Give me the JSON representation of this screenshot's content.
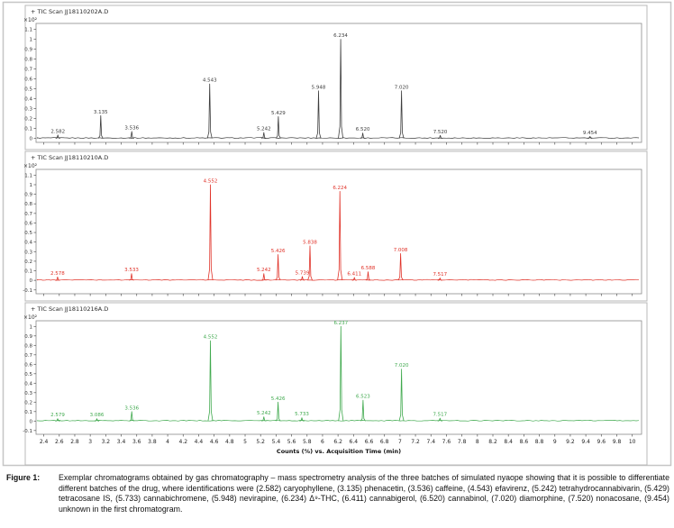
{
  "caption": {
    "label": "Figure 1:",
    "text": "Exemplar chromatograms obtained by gas chromatography – mass spectrometry analysis of the three batches of simulated nyaope showing that it is possible to differentiate different batches of the drug, where identifications were (2.582) caryophyllene, (3.135) phenacetin, (3.536) caffeine, (4.543) efavirenz, (5.242) tetrahydrocannabivarin, (5.429) tetracosane IS, (5.733) cannabichromene, (5.948) nevirapine, (6.234) Δ⁹-THC, (6.411) cannabigerol, (6.520) cannabinol, (7.020) diamorphine, (7.520) nonacosane, (9.454) unknown in the first chromatogram."
  },
  "chart_data": {
    "type": "line",
    "subtype": "chromatogram-stack",
    "xlabel": "Counts (%) vs. Acquisition Time (min)",
    "x_range": [
      2.3,
      10.12
    ],
    "x_tick_start": 2.4,
    "x_tick_end": 10,
    "x_tick_step": 0.2,
    "y_scale_label": "×10²",
    "panels": [
      {
        "title": "+ TIC Scan JJ18110202A.D",
        "color": "#3d3d3d",
        "y_ticks": [
          0,
          1.1
        ],
        "ylim": [
          -0.04,
          1.16
        ],
        "peaks": [
          {
            "rt": 2.582,
            "height": 0.035,
            "label": "2.582"
          },
          {
            "rt": 3.135,
            "height": 0.23,
            "label": "3.135"
          },
          {
            "rt": 3.536,
            "height": 0.07,
            "label": "3.536"
          },
          {
            "rt": 4.543,
            "height": 0.55,
            "label": "4.543"
          },
          {
            "rt": 5.242,
            "height": 0.06,
            "label": "5.242"
          },
          {
            "rt": 5.429,
            "height": 0.22,
            "label": "5.429"
          },
          {
            "rt": 5.948,
            "height": 0.48,
            "label": "5.948"
          },
          {
            "rt": 6.234,
            "height": 1.0,
            "label": "6.234"
          },
          {
            "rt": 6.52,
            "height": 0.055,
            "label": "6.520"
          },
          {
            "rt": 7.02,
            "height": 0.48,
            "label": "7.020"
          },
          {
            "rt": 7.52,
            "height": 0.03,
            "label": "7.520"
          },
          {
            "rt": 9.454,
            "height": 0.02,
            "label": "9.454"
          }
        ]
      },
      {
        "title": "+ TIC Scan JJ18110210A.D",
        "color": "#e03228",
        "y_ticks": [
          -0.1,
          1.1
        ],
        "ylim": [
          -0.14,
          1.16
        ],
        "peaks": [
          {
            "rt": 2.578,
            "height": 0.035,
            "label": "2.578"
          },
          {
            "rt": 3.533,
            "height": 0.07,
            "label": "3.533"
          },
          {
            "rt": 4.552,
            "height": 1.0,
            "label": "4.552"
          },
          {
            "rt": 5.242,
            "height": 0.07,
            "label": "5.242"
          },
          {
            "rt": 5.426,
            "height": 0.27,
            "label": "5.426"
          },
          {
            "rt": 5.739,
            "height": 0.04,
            "label": "5.739"
          },
          {
            "rt": 5.838,
            "height": 0.36,
            "label": "5.838"
          },
          {
            "rt": 6.224,
            "height": 0.93,
            "label": "6.224"
          },
          {
            "rt": 6.411,
            "height": 0.03,
            "label": "6.411"
          },
          {
            "rt": 6.588,
            "height": 0.09,
            "label": "6.588"
          },
          {
            "rt": 7.008,
            "height": 0.28,
            "label": "7.008"
          },
          {
            "rt": 7.517,
            "height": 0.025,
            "label": "7.517"
          }
        ]
      },
      {
        "title": "+ TIC Scan JJ18110216A.D",
        "color": "#3fa94d",
        "y_ticks": [
          -0.1,
          1.0
        ],
        "ylim": [
          -0.14,
          1.06
        ],
        "peaks": [
          {
            "rt": 2.579,
            "height": 0.025,
            "label": "2.579"
          },
          {
            "rt": 3.086,
            "height": 0.025,
            "label": "3.086"
          },
          {
            "rt": 3.536,
            "height": 0.1,
            "label": "3.536"
          },
          {
            "rt": 4.552,
            "height": 0.85,
            "label": "4.552"
          },
          {
            "rt": 5.242,
            "height": 0.045,
            "label": "5.242"
          },
          {
            "rt": 5.426,
            "height": 0.2,
            "label": "5.426"
          },
          {
            "rt": 5.733,
            "height": 0.035,
            "label": "5.733"
          },
          {
            "rt": 6.237,
            "height": 1.0,
            "label": "6.237"
          },
          {
            "rt": 6.523,
            "height": 0.22,
            "label": "6.523"
          },
          {
            "rt": 7.02,
            "height": 0.55,
            "label": "7.020"
          },
          {
            "rt": 7.517,
            "height": 0.03,
            "label": "7.517"
          }
        ]
      }
    ]
  }
}
